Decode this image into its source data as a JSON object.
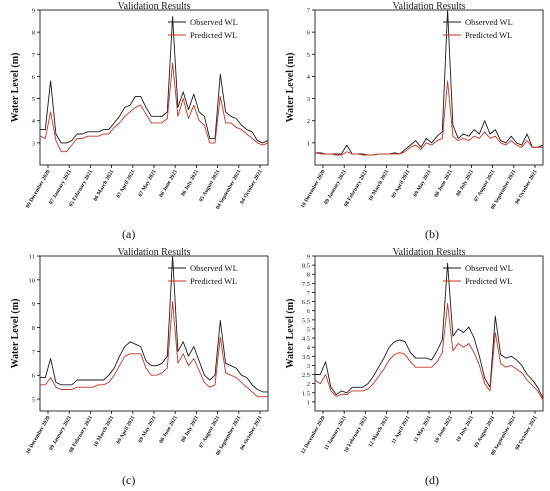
{
  "figure": {
    "panel_labels": [
      "(a)",
      "(b)",
      "(c)",
      "(d)"
    ]
  },
  "colors": {
    "observed": "#1a1a1a",
    "predicted": "#c83226",
    "axis": "#000000"
  },
  "chart_data": [
    {
      "type": "line",
      "title": "Validation Results",
      "ylabel": "Water Level (m)",
      "ylim": [
        2,
        9
      ],
      "yticks": [
        3,
        4,
        5,
        6,
        7,
        8,
        9
      ],
      "xticks": [
        "09 December 2020",
        "07 January 2021",
        "05 February 2021",
        "06 March 2021",
        "07 April 2021",
        "07 May 2021",
        "06 June 2021",
        "06 July 2021",
        "05 August 2021",
        "04 September 2021",
        "04 October 2021"
      ],
      "legend": "top-right",
      "series": [
        {
          "name": "Observed WL",
          "values": [
            3.6,
            3.6,
            5.8,
            3.4,
            3.0,
            3.0,
            3.1,
            3.4,
            3.4,
            3.5,
            3.5,
            3.5,
            3.6,
            3.6,
            3.9,
            4.2,
            4.6,
            4.7,
            5.1,
            5.1,
            4.6,
            4.2,
            4.2,
            4.2,
            4.4,
            8.7,
            4.6,
            5.3,
            4.5,
            5.2,
            4.4,
            4.2,
            3.2,
            3.2,
            6.1,
            4.4,
            4.2,
            4.1,
            3.8,
            3.6,
            3.5,
            3.1,
            3.0,
            3.1
          ]
        },
        {
          "name": "Predicted WL",
          "values": [
            3.3,
            3.2,
            4.4,
            3.1,
            2.6,
            2.6,
            2.9,
            3.2,
            3.2,
            3.3,
            3.3,
            3.3,
            3.4,
            3.4,
            3.7,
            3.9,
            4.2,
            4.4,
            4.6,
            4.7,
            4.3,
            3.9,
            3.9,
            3.9,
            4.1,
            6.6,
            4.2,
            5.0,
            4.1,
            4.7,
            4.0,
            3.8,
            3.0,
            3.0,
            5.1,
            3.9,
            3.9,
            3.7,
            3.6,
            3.4,
            3.2,
            3.0,
            2.9,
            3.0
          ]
        }
      ]
    },
    {
      "type": "line",
      "title": "Validation Results",
      "ylabel": "Water Level (m)",
      "ylim": [
        0,
        7
      ],
      "yticks": [
        1,
        2,
        3,
        4,
        5,
        6,
        7
      ],
      "xticks": [
        "10 December 2020",
        "09 January 2021",
        "08 February 2021",
        "10 March 2021",
        "09 April 2021",
        "09 May 2021",
        "08 June 2021",
        "08 July 2021",
        "07 August 2021",
        "06 September 2021",
        "06 October 2021"
      ],
      "legend": "top-right",
      "series": [
        {
          "name": "Observed WL",
          "values": [
            0.55,
            0.55,
            0.5,
            0.5,
            0.5,
            0.5,
            0.9,
            0.5,
            0.5,
            0.5,
            0.45,
            0.45,
            0.5,
            0.5,
            0.5,
            0.55,
            0.5,
            0.7,
            0.9,
            1.1,
            0.8,
            1.2,
            1.0,
            1.3,
            1.5,
            7.0,
            1.8,
            1.2,
            1.4,
            1.3,
            1.6,
            1.4,
            2.0,
            1.4,
            1.6,
            1.1,
            1.0,
            1.3,
            1.0,
            0.9,
            1.4,
            0.8,
            0.8,
            0.9
          ]
        },
        {
          "name": "Predicted WL",
          "values": [
            0.55,
            0.5,
            0.5,
            0.5,
            0.45,
            0.45,
            0.6,
            0.5,
            0.5,
            0.45,
            0.45,
            0.45,
            0.5,
            0.5,
            0.5,
            0.5,
            0.5,
            0.6,
            0.8,
            0.9,
            0.7,
            1.0,
            0.9,
            1.1,
            1.2,
            3.8,
            1.3,
            1.1,
            1.2,
            1.1,
            1.3,
            1.2,
            1.5,
            1.2,
            1.3,
            1.0,
            0.9,
            1.1,
            0.9,
            0.8,
            1.1,
            0.8,
            0.8,
            0.8
          ]
        }
      ]
    },
    {
      "type": "line",
      "title": "Validation Results",
      "ylabel": "Water Level (m)",
      "ylim": [
        4.5,
        11
      ],
      "yticks": [
        5,
        6,
        7,
        8,
        9,
        10,
        11
      ],
      "xticks": [
        "10 December 2020",
        "09 January 2021",
        "08 February 2021",
        "10 March 2021",
        "09 April 2021",
        "09 May 2021",
        "08 June 2021",
        "08 July 2021",
        "07 August 2021",
        "06 September 2021",
        "06 October 2021"
      ],
      "legend": "top-right",
      "series": [
        {
          "name": "Observed WL",
          "values": [
            5.9,
            5.9,
            6.7,
            5.7,
            5.6,
            5.6,
            5.6,
            5.8,
            5.8,
            5.8,
            5.8,
            5.8,
            5.8,
            6.0,
            6.3,
            6.8,
            7.2,
            7.4,
            7.3,
            7.2,
            6.6,
            6.4,
            6.4,
            6.5,
            6.8,
            11.0,
            7.0,
            7.4,
            6.8,
            7.2,
            6.6,
            6.0,
            5.8,
            6.0,
            8.3,
            6.5,
            6.4,
            6.3,
            6.0,
            5.9,
            5.6,
            5.4,
            5.3,
            5.3
          ]
        },
        {
          "name": "Predicted WL",
          "values": [
            5.6,
            5.6,
            5.9,
            5.5,
            5.4,
            5.4,
            5.4,
            5.5,
            5.5,
            5.5,
            5.5,
            5.6,
            5.6,
            5.7,
            6.0,
            6.4,
            6.8,
            6.9,
            6.9,
            6.9,
            6.3,
            6.0,
            6.0,
            6.1,
            6.3,
            9.1,
            6.5,
            6.9,
            6.4,
            6.7,
            6.2,
            5.7,
            5.5,
            5.6,
            7.6,
            6.1,
            6.0,
            5.9,
            5.7,
            5.5,
            5.3,
            5.1,
            5.1,
            5.1
          ]
        }
      ]
    },
    {
      "type": "line",
      "title": "Validation Results",
      "ylabel": "Water Level (m)",
      "ylim": [
        0.5,
        9
      ],
      "yticks": [
        1,
        1.5,
        2,
        2.5,
        3,
        3.5,
        4,
        4.5,
        5,
        5.5,
        6,
        6.5,
        7,
        7.5,
        8,
        8.5,
        9
      ],
      "xticks": [
        "12 December 2020",
        "11 January 2021",
        "10 February 2021",
        "12 March 2021",
        "11 April 2021",
        "11 May 2021",
        "10 June 2021",
        "10 July 2021",
        "09 August 2021",
        "08 September 2021",
        "08 October 2021"
      ],
      "legend": "top-right",
      "series": [
        {
          "name": "Observed WL",
          "values": [
            2.5,
            2.5,
            3.2,
            1.8,
            1.4,
            1.6,
            1.5,
            1.8,
            1.8,
            1.8,
            2.0,
            2.4,
            2.9,
            3.4,
            4.0,
            4.3,
            4.4,
            4.3,
            3.7,
            3.4,
            3.4,
            3.4,
            3.3,
            3.8,
            4.4,
            8.6,
            4.6,
            5.0,
            4.8,
            5.1,
            4.5,
            3.5,
            2.3,
            1.8,
            5.7,
            3.6,
            3.4,
            3.5,
            3.3,
            3.0,
            2.5,
            2.2,
            1.8,
            1.2
          ]
        },
        {
          "name": "Predicted WL",
          "values": [
            2.2,
            2.0,
            2.5,
            1.6,
            1.3,
            1.4,
            1.4,
            1.6,
            1.6,
            1.6,
            1.7,
            2.0,
            2.4,
            2.8,
            3.3,
            3.6,
            3.7,
            3.6,
            3.2,
            2.9,
            2.9,
            2.9,
            2.9,
            3.2,
            3.7,
            6.4,
            3.8,
            4.2,
            4.0,
            4.2,
            3.7,
            3.0,
            2.0,
            1.6,
            4.8,
            3.1,
            2.9,
            3.0,
            2.8,
            2.6,
            2.2,
            1.9,
            1.6,
            1.1
          ]
        }
      ]
    }
  ]
}
